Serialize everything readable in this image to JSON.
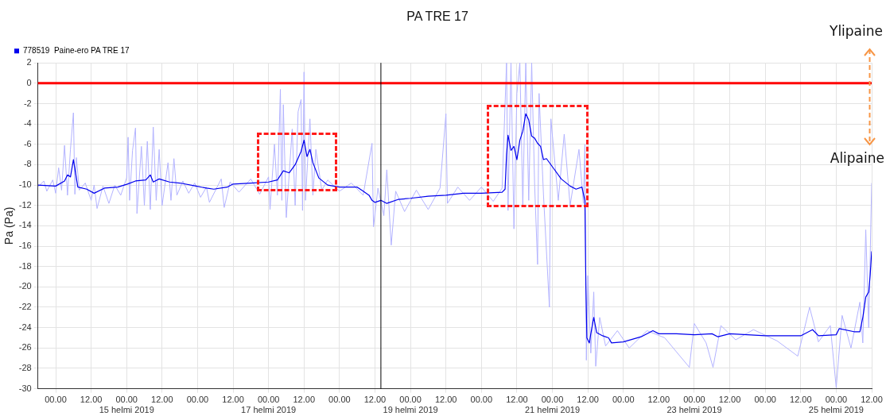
{
  "chart_data": {
    "type": "line",
    "title": "PA TRE 17",
    "ylabel": "Pa (Pa)",
    "legend": "top left",
    "grid": true,
    "marker": "none",
    "line_style": "solid",
    "annotations": [
      "Ylipaine",
      "Alipaine"
    ],
    "xlim": [
      "2019-02-13T18:00",
      "2019-02-25T12:00"
    ],
    "xticks": [
      {
        "value": "2019-02-14T00:00",
        "label": "00.00"
      },
      {
        "value": "2019-02-14T12:00",
        "label": "12.00"
      },
      {
        "value": "2019-02-15T00:00",
        "label": "00.00\n15 helmi 2019"
      },
      {
        "value": "2019-02-15T12:00",
        "label": "12.00"
      },
      {
        "value": "2019-02-16T00:00",
        "label": "00.00"
      },
      {
        "value": "2019-02-16T12:00",
        "label": "12.00"
      },
      {
        "value": "2019-02-17T00:00",
        "label": "00.00\n17 helmi 2019"
      },
      {
        "value": "2019-02-17T12:00",
        "label": "12.00"
      },
      {
        "value": "2019-02-18T00:00",
        "label": "00.00"
      },
      {
        "value": "2019-02-18T12:00",
        "label": "12.00"
      },
      {
        "value": "2019-02-19T00:00",
        "label": "00.00\n19 helmi 2019"
      },
      {
        "value": "2019-02-19T12:00",
        "label": "12.00"
      },
      {
        "value": "2019-02-20T00:00",
        "label": "00.00"
      },
      {
        "value": "2019-02-20T12:00",
        "label": "12.00"
      },
      {
        "value": "2019-02-21T00:00",
        "label": "00.00\n21 helmi 2019"
      },
      {
        "value": "2019-02-21T12:00",
        "label": "12.00"
      },
      {
        "value": "2019-02-22T00:00",
        "label": "00.00"
      },
      {
        "value": "2019-02-22T12:00",
        "label": "12.00"
      },
      {
        "value": "2019-02-23T00:00",
        "label": "00.00\n23 helmi 2019"
      },
      {
        "value": "2019-02-23T12:00",
        "label": "12.00"
      },
      {
        "value": "2019-02-24T00:00",
        "label": "00.00"
      },
      {
        "value": "2019-02-24T12:00",
        "label": "12.00"
      },
      {
        "value": "2019-02-25T00:00",
        "label": "00.00\n25 helmi 2019"
      },
      {
        "value": "2019-02-25T12:00",
        "label": "12.00"
      }
    ],
    "ylim": [
      -30,
      2
    ],
    "yticks": [
      -30,
      -28,
      -26,
      -24,
      -22,
      -20,
      -18,
      -16,
      -14,
      -12,
      -10,
      -8,
      -6,
      -4,
      -2,
      0,
      2
    ],
    "ref_lines": [
      {
        "axis": "y",
        "value": 0,
        "label": null,
        "color": "#ff0000"
      },
      {
        "axis": "x",
        "value": "2019-02-18T14:00",
        "label": null,
        "color": "#000000"
      }
    ],
    "series": [
      {
        "color": "#b3b3ff",
        "x": [
          "2019-02-13T18:00",
          "2019-02-13T20:00",
          "2019-02-13T21:00",
          "2019-02-13T23:00",
          "2019-02-14T00:00",
          "2019-02-14T01:00",
          "2019-02-14T02:00",
          "2019-02-14T03:00",
          "2019-02-14T04:00",
          "2019-02-14T05:00",
          "2019-02-14T06:00",
          "2019-02-14T06:30",
          "2019-02-14T07:00",
          "2019-02-14T08:00",
          "2019-02-14T10:00",
          "2019-02-14T12:00",
          "2019-02-14T13:00",
          "2019-02-14T14:00",
          "2019-02-14T16:00",
          "2019-02-14T18:00",
          "2019-02-14T20:00",
          "2019-02-14T22:00",
          "2019-02-15T00:00",
          "2019-02-15T00:30",
          "2019-02-15T01:00",
          "2019-02-15T02:00",
          "2019-02-15T03:00",
          "2019-02-15T03:30",
          "2019-02-15T05:00",
          "2019-02-15T06:00",
          "2019-02-15T07:00",
          "2019-02-15T08:00",
          "2019-02-15T09:00",
          "2019-02-15T10:00",
          "2019-02-15T11:00",
          "2019-02-15T12:00",
          "2019-02-15T14:00",
          "2019-02-15T15:00",
          "2019-02-15T16:00",
          "2019-02-15T17:00",
          "2019-02-15T19:00",
          "2019-02-15T21:00",
          "2019-02-15T23:00",
          "2019-02-16T01:00",
          "2019-02-16T03:00",
          "2019-02-16T04:00",
          "2019-02-16T08:00",
          "2019-02-16T09:00",
          "2019-02-16T11:00",
          "2019-02-16T14:00",
          "2019-02-16T18:00",
          "2019-02-16T21:00",
          "2019-02-17T00:00",
          "2019-02-17T00:30",
          "2019-02-17T02:00",
          "2019-02-17T03:00",
          "2019-02-17T04:00",
          "2019-02-17T04:30",
          "2019-02-17T05:00",
          "2019-02-17T06:00",
          "2019-02-17T08:00",
          "2019-02-17T09:00",
          "2019-02-17T10:00",
          "2019-02-17T11:00",
          "2019-02-17T11:30",
          "2019-02-17T12:00",
          "2019-02-17T12:30",
          "2019-02-17T14:00",
          "2019-02-17T15:00",
          "2019-02-17T16:00",
          "2019-02-17T18:00",
          "2019-02-17T20:00",
          "2019-02-18T00:00",
          "2019-02-18T04:00",
          "2019-02-18T08:00",
          "2019-02-18T11:00",
          "2019-02-18T11:30",
          "2019-02-18T13:00",
          "2019-02-18T15:00",
          "2019-02-18T16:00",
          "2019-02-18T17:30",
          "2019-02-18T19:00",
          "2019-02-18T22:00",
          "2019-02-19T02:00",
          "2019-02-19T06:00",
          "2019-02-19T10:00",
          "2019-02-19T12:00",
          "2019-02-19T12:30",
          "2019-02-19T16:00",
          "2019-02-19T20:00",
          "2019-02-20T00:00",
          "2019-02-20T04:00",
          "2019-02-20T07:00",
          "2019-02-20T08:30",
          "2019-02-20T09:00",
          "2019-02-20T10:00",
          "2019-02-20T11:00",
          "2019-02-20T12:00",
          "2019-02-20T13:00",
          "2019-02-20T14:00",
          "2019-02-20T15:00",
          "2019-02-20T16:00",
          "2019-02-20T17:00",
          "2019-02-20T18:00",
          "2019-02-20T19:00",
          "2019-02-20T19:30",
          "2019-02-20T21:00",
          "2019-02-20T23:00",
          "2019-02-20T23:30",
          "2019-02-21T02:00",
          "2019-02-21T04:00",
          "2019-02-21T06:00",
          "2019-02-21T09:00",
          "2019-02-21T10:30",
          "2019-02-21T11:00",
          "2019-02-21T11:30",
          "2019-02-21T12:00",
          "2019-02-21T13:00",
          "2019-02-21T14:00",
          "2019-02-21T14:40",
          "2019-02-21T16:00",
          "2019-02-21T18:00",
          "2019-02-21T22:00",
          "2019-02-22T02:00",
          "2019-02-22T08:00",
          "2019-02-22T14:00",
          "2019-02-22T22:20",
          "2019-02-23T00:00",
          "2019-02-23T04:00",
          "2019-02-23T06:20",
          "2019-02-23T09:00",
          "2019-02-23T14:00",
          "2019-02-23T20:00",
          "2019-02-24T04:00",
          "2019-02-24T11:00",
          "2019-02-24T15:00",
          "2019-02-24T18:00",
          "2019-02-24T22:00",
          "2019-02-25T00:00",
          "2019-02-25T02:00",
          "2019-02-25T05:00",
          "2019-02-25T08:00",
          "2019-02-25T09:00",
          "2019-02-25T10:00",
          "2019-02-25T11:00",
          "2019-02-25T12:00"
        ],
        "values": [
          -10.2,
          -9.6,
          -10.6,
          -9.5,
          -10.8,
          -8.3,
          -10.5,
          -6.1,
          -11.0,
          -6.5,
          -2.9,
          -10.9,
          -7.3,
          -10.5,
          -9.8,
          -11.5,
          -10.0,
          -12.3,
          -10.1,
          -11.8,
          -10.0,
          -11.0,
          -9.3,
          -5.3,
          -11.5,
          -6.6,
          -4.4,
          -12.8,
          -6.2,
          -12.0,
          -5.7,
          -12.4,
          -4.3,
          -11.5,
          -6.5,
          -12.0,
          -7.8,
          -11.5,
          -7.4,
          -11.0,
          -9.6,
          -10.8,
          -9.8,
          -11.2,
          -10.2,
          -11.7,
          -9.4,
          -12.2,
          -9.7,
          -10.7,
          -9.4,
          -10.9,
          -9.2,
          -12.4,
          -6.0,
          -11.0,
          -0.6,
          -11.5,
          -2.1,
          -13.2,
          -4.5,
          -12.0,
          -2.8,
          -1.6,
          -12.5,
          1.1,
          -11.5,
          -3.5,
          -11.0,
          -6.5,
          -10.5,
          -9.5,
          -10.6,
          -9.8,
          -11.0,
          -5.9,
          -14.1,
          -10.3,
          -13.0,
          -8.5,
          -15.9,
          -10.6,
          -12.6,
          -10.5,
          -12.4,
          -10.3,
          -3.0,
          -11.8,
          -10.2,
          -11.5,
          -10.2,
          -11.6,
          -10.3,
          2.0,
          -12.5,
          2.0,
          -14.3,
          -1.0,
          2.0,
          -12.0,
          2.0,
          -11.5,
          2.0,
          -10.0,
          -17.8,
          -1.0,
          -11.0,
          -22.0,
          -3.5,
          -11.5,
          -5.0,
          -12.0,
          -6.5,
          -11.8,
          -6.0,
          -27.2,
          -18.9,
          -26.5,
          -20.5,
          -27.8,
          -23.0,
          -25.8,
          -24.3,
          -26.0,
          -24.3,
          -25.0,
          -27.9,
          -23.6,
          -25.5,
          -27.9,
          -23.8,
          -25.2,
          -24.2,
          -25.3,
          -26.8,
          -22.0,
          -25.4,
          -23.8,
          -29.9,
          -22.8,
          -26.0,
          -21.5,
          -25.5,
          -14.4,
          -24.0,
          -9.8
        ]
      },
      {
        "name": "778519  Paine-ero PA TRE 17",
        "color": "#0000ee",
        "x": [
          "2019-02-13T18:00",
          "2019-02-14T00:00",
          "2019-02-14T03:00",
          "2019-02-14T04:00",
          "2019-02-14T05:00",
          "2019-02-14T06:00",
          "2019-02-14T07:30",
          "2019-02-14T10:30",
          "2019-02-14T13:00",
          "2019-02-14T16:30",
          "2019-02-14T21:00",
          "2019-02-15T00:15",
          "2019-02-15T03:00",
          "2019-02-15T06:30",
          "2019-02-15T08:00",
          "2019-02-15T09:00",
          "2019-02-15T11:00",
          "2019-02-15T14:30",
          "2019-02-15T18:00",
          "2019-02-15T23:30",
          "2019-02-16T03:00",
          "2019-02-16T05:30",
          "2019-02-16T10:00",
          "2019-02-16T12:00",
          "2019-02-16T18:00",
          "2019-02-17T00:00",
          "2019-02-17T03:00",
          "2019-02-17T05:00",
          "2019-02-17T07:00",
          "2019-02-17T09:00",
          "2019-02-17T11:00",
          "2019-02-17T12:00",
          "2019-02-17T13:00",
          "2019-02-17T14:00",
          "2019-02-17T15:00",
          "2019-02-17T17:00",
          "2019-02-17T20:00",
          "2019-02-18T00:00",
          "2019-02-18T06:00",
          "2019-02-18T08:00",
          "2019-02-18T10:00",
          "2019-02-18T11:00",
          "2019-02-18T12:00",
          "2019-02-18T14:00",
          "2019-02-18T16:00",
          "2019-02-18T20:00",
          "2019-02-19T00:00",
          "2019-02-19T06:00",
          "2019-02-19T12:00",
          "2019-02-19T18:00",
          "2019-02-20T00:00",
          "2019-02-20T07:00",
          "2019-02-20T08:00",
          "2019-02-20T08:30",
          "2019-02-20T09:00",
          "2019-02-20T10:00",
          "2019-02-20T11:00",
          "2019-02-20T12:00",
          "2019-02-20T13:00",
          "2019-02-20T14:00",
          "2019-02-20T15:00",
          "2019-02-20T16:00",
          "2019-02-20T17:00",
          "2019-02-20T18:00",
          "2019-02-20T19:00",
          "2019-02-20T20:00",
          "2019-02-20T21:00",
          "2019-02-20T22:00",
          "2019-02-21T00:00",
          "2019-02-21T03:00",
          "2019-02-21T06:00",
          "2019-02-21T08:00",
          "2019-02-21T10:00",
          "2019-02-21T11:00",
          "2019-02-21T11:20",
          "2019-02-21T11:40",
          "2019-02-21T12:30",
          "2019-02-21T13:00",
          "2019-02-21T14:00",
          "2019-02-21T15:00",
          "2019-02-21T17:00",
          "2019-02-21T19:00",
          "2019-02-21T20:00",
          "2019-02-22T00:00",
          "2019-02-22T06:00",
          "2019-02-22T10:00",
          "2019-02-22T12:00",
          "2019-02-22T18:00",
          "2019-02-23T00:00",
          "2019-02-23T06:00",
          "2019-02-23T08:00",
          "2019-02-23T12:00",
          "2019-02-23T18:00",
          "2019-02-24T00:00",
          "2019-02-24T12:00",
          "2019-02-24T16:00",
          "2019-02-24T18:00",
          "2019-02-25T00:00",
          "2019-02-25T01:00",
          "2019-02-25T06:00",
          "2019-02-25T08:00",
          "2019-02-25T09:00",
          "2019-02-25T10:00",
          "2019-02-25T11:00",
          "2019-02-25T11:30",
          "2019-02-25T12:00"
        ],
        "values": [
          -10.0,
          -10.1,
          -9.6,
          -9.0,
          -9.2,
          -7.5,
          -10.2,
          -10.4,
          -10.8,
          -10.3,
          -10.2,
          -9.9,
          -9.6,
          -9.5,
          -9.0,
          -9.7,
          -9.4,
          -9.7,
          -9.8,
          -10.1,
          -10.3,
          -10.4,
          -10.2,
          -9.9,
          -9.8,
          -9.7,
          -9.5,
          -8.6,
          -8.8,
          -8.0,
          -6.7,
          -5.6,
          -7.2,
          -6.5,
          -7.8,
          -9.3,
          -10.0,
          -10.2,
          -10.2,
          -10.6,
          -11.0,
          -11.5,
          -11.7,
          -11.5,
          -11.8,
          -11.4,
          -11.3,
          -11.1,
          -11.0,
          -10.8,
          -10.8,
          -10.7,
          -10.4,
          -7.0,
          -5.1,
          -6.6,
          -6.2,
          -7.5,
          -5.6,
          -4.7,
          -3.0,
          -3.6,
          -5.2,
          -5.4,
          -5.9,
          -6.2,
          -7.5,
          -7.4,
          -8.2,
          -9.4,
          -10.1,
          -10.4,
          -10.2,
          -11.5,
          -20.0,
          -25.0,
          -25.5,
          -24.6,
          -23.0,
          -24.5,
          -24.8,
          -25.0,
          -25.5,
          -25.4,
          -24.9,
          -24.3,
          -24.6,
          -24.6,
          -24.7,
          -24.6,
          -24.9,
          -24.6,
          -24.7,
          -24.8,
          -24.8,
          -24.2,
          -24.8,
          -24.7,
          -24.1,
          -24.4,
          -24.4,
          -23.0,
          -21.0,
          -20.5,
          -18.8,
          -16.5
        ]
      }
    ]
  }
}
